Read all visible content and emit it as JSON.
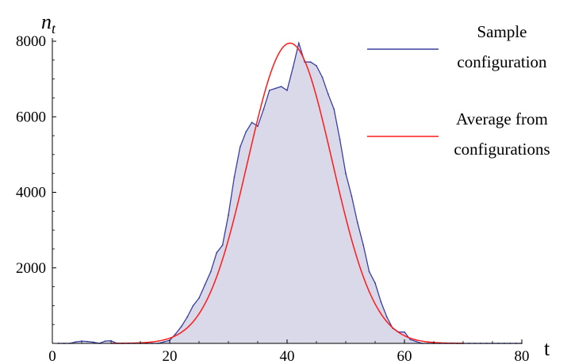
{
  "chart_data": {
    "type": "area",
    "title": "",
    "xlabel": "t",
    "ylabel": "n",
    "ylabel_sub": "t",
    "xlim": [
      0,
      80
    ],
    "ylim": [
      0,
      8000
    ],
    "x_ticks": [
      0,
      20,
      40,
      60,
      80
    ],
    "y_ticks": [
      2000,
      4000,
      6000,
      8000
    ],
    "x_tick_labels": [
      "0",
      "20",
      "40",
      "60",
      "80"
    ],
    "y_tick_labels": [
      "2000",
      "4000",
      "6000",
      "8000"
    ],
    "grid": false,
    "legend_position": "right",
    "series": [
      {
        "name": "Sample configuration",
        "legend_lines": [
          "Sample",
          "configuration"
        ],
        "color": "#3b3fa0",
        "fill_color": "#d9d9ea",
        "x": [
          1,
          2,
          3,
          4,
          5,
          6,
          7,
          8,
          9,
          10,
          11,
          12,
          13,
          14,
          15,
          16,
          17,
          18,
          19,
          20,
          21,
          22,
          23,
          24,
          25,
          26,
          27,
          28,
          29,
          30,
          31,
          32,
          33,
          34,
          35,
          36,
          37,
          38,
          39,
          40,
          41,
          42,
          43,
          44,
          45,
          46,
          47,
          48,
          49,
          50,
          51,
          52,
          53,
          54,
          55,
          56,
          57,
          58,
          59,
          60,
          61,
          62,
          63,
          64,
          65,
          66,
          67,
          68,
          69,
          70,
          71,
          72,
          73,
          74,
          75,
          76,
          77,
          78,
          79,
          80
        ],
        "values": [
          0,
          0,
          0,
          40,
          60,
          50,
          30,
          0,
          60,
          70,
          0,
          0,
          0,
          0,
          0,
          0,
          0,
          0,
          40,
          80,
          250,
          450,
          700,
          1000,
          1200,
          1550,
          1900,
          2400,
          2600,
          3400,
          4400,
          5200,
          5600,
          5850,
          5750,
          6200,
          6700,
          6750,
          6800,
          6700,
          7300,
          7950,
          7450,
          7450,
          7350,
          7050,
          6600,
          6200,
          5400,
          4500,
          3900,
          3200,
          2600,
          1900,
          1600,
          1100,
          700,
          400,
          300,
          300,
          100,
          50,
          0,
          0,
          0,
          0,
          0,
          0,
          0,
          0,
          0,
          0,
          0,
          0,
          0,
          0,
          0,
          0,
          0,
          0
        ]
      },
      {
        "name": "Average from configurations",
        "legend_lines": [
          "Average from",
          "configurations"
        ],
        "color": "#ff1a1a",
        "curve": {
          "peak": 7950,
          "center": 40.5,
          "sigma": 7.2,
          "x_start": 10,
          "x_end": 70
        }
      }
    ]
  }
}
